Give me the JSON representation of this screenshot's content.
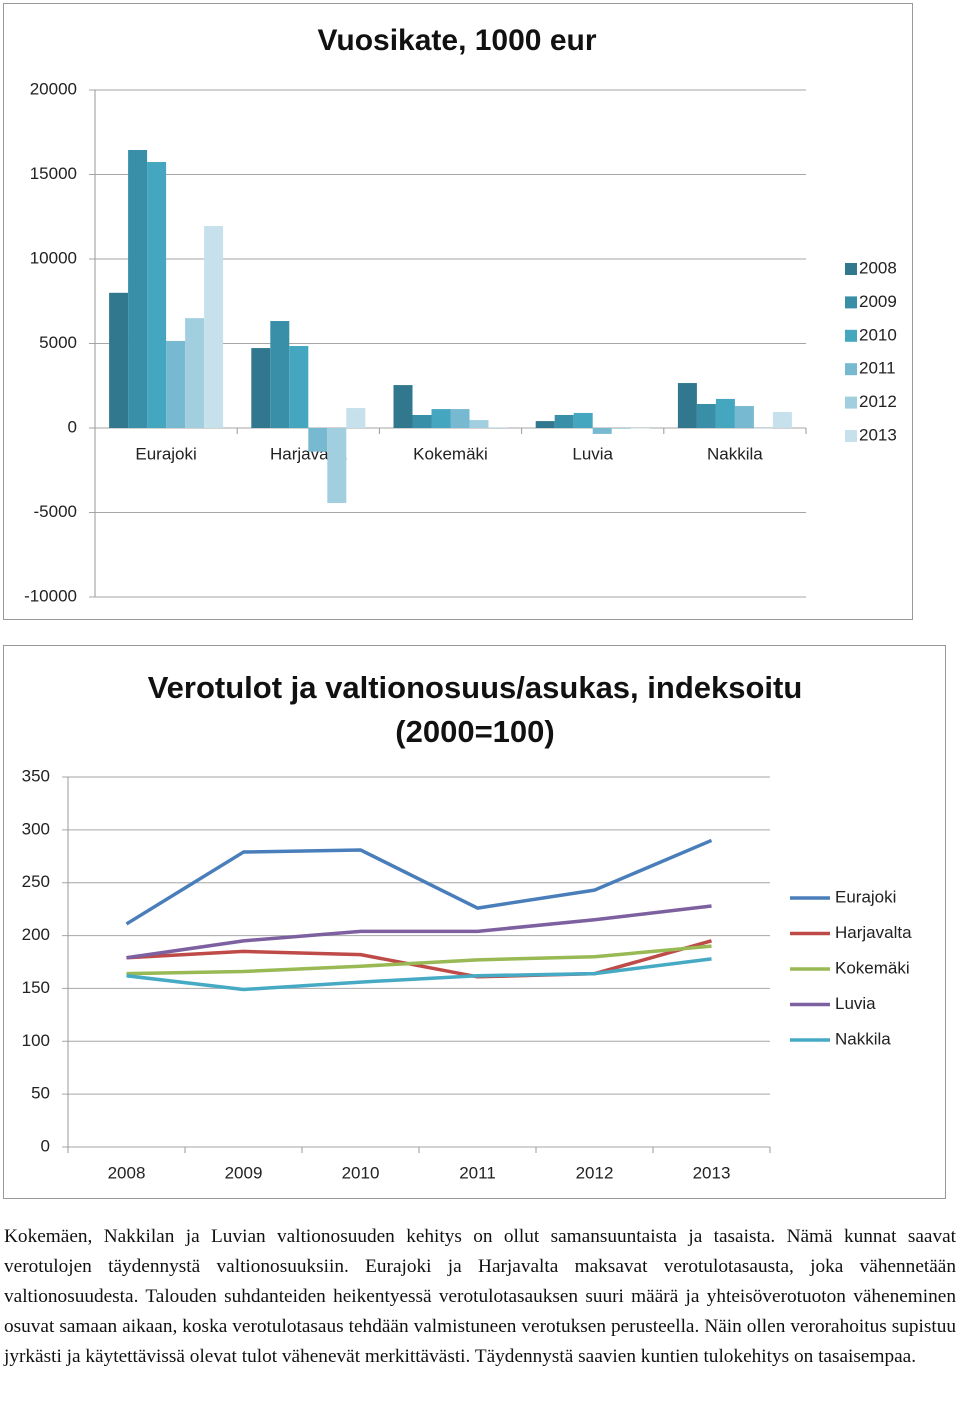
{
  "chart_data": [
    {
      "type": "bar",
      "title": "Vuosikate, 1000 eur",
      "categories": [
        "Eurajoki",
        "Harjavalta",
        "Kokemäki",
        "Luvia",
        "Nakkila"
      ],
      "series": [
        {
          "name": "2008",
          "color": "#31788f",
          "values": [
            8000,
            4730,
            2540,
            410,
            2660
          ]
        },
        {
          "name": "2009",
          "color": "#3a8fa8",
          "values": [
            16450,
            6330,
            770,
            770,
            1420
          ]
        },
        {
          "name": "2010",
          "color": "#45a6c0",
          "values": [
            15740,
            4850,
            1120,
            890,
            1720
          ]
        },
        {
          "name": "2011",
          "color": "#76b9d1",
          "values": [
            5150,
            -1400,
            1120,
            -350,
            1300
          ]
        },
        {
          "name": "2012",
          "color": "#a2cfe0",
          "values": [
            6500,
            -4440,
            470,
            -50,
            -30
          ]
        },
        {
          "name": "2013",
          "color": "#c6e1ec",
          "values": [
            11950,
            1180,
            50,
            -30,
            950
          ]
        }
      ],
      "ylim": [
        -10000,
        20000
      ],
      "yticks": [
        -10000,
        -5000,
        0,
        5000,
        10000,
        15000,
        20000
      ],
      "grid": true
    },
    {
      "type": "line",
      "title": "Verotulot ja valtionosuus/asukas, indeksoitu (2000=100)",
      "categories": [
        "2008",
        "2009",
        "2010",
        "2011",
        "2012",
        "2013"
      ],
      "series": [
        {
          "name": "Eurajoki",
          "color": "#4a7ebb",
          "values": [
            211,
            279,
            281,
            226,
            243,
            290
          ]
        },
        {
          "name": "Harjavalta",
          "color": "#be4b48",
          "values": [
            179,
            185,
            182,
            161,
            164,
            195
          ]
        },
        {
          "name": "Kokemäki",
          "color": "#98b954",
          "values": [
            164,
            166,
            171,
            177,
            180,
            190
          ]
        },
        {
          "name": "Luvia",
          "color": "#7d60a0",
          "values": [
            179,
            195,
            204,
            204,
            215,
            228
          ]
        },
        {
          "name": "Nakkila",
          "color": "#46aac5",
          "values": [
            162,
            149,
            156,
            162,
            164,
            178
          ]
        }
      ],
      "ylim": [
        0,
        350
      ],
      "yticks": [
        0,
        50,
        100,
        150,
        200,
        250,
        300,
        350
      ],
      "grid": true
    }
  ],
  "paragraph": "Kokemäen, Nakkilan ja Luvian valtionosuuden kehitys on ollut samansuuntaista ja tasaista. Nämä kunnat saavat verotulojen täydennystä valtionosuuksiin. Eurajoki ja Harjavalta maksavat verotulotasausta, joka vähennetään valtionosuudesta. Talouden suhdanteiden heikentyessä verotulotasauksen suuri määrä ja yhteisöverotuoton väheneminen osuvat samaan aikaan, koska verotulotasaus tehdään valmistuneen verotuksen perusteella. Näin ollen verorahoitus supistuu jyrkästi ja käytettävissä olevat tulot vähenevät merkittävästi. Täydennystä saavien kuntien tulokehitys on tasaisempaa."
}
